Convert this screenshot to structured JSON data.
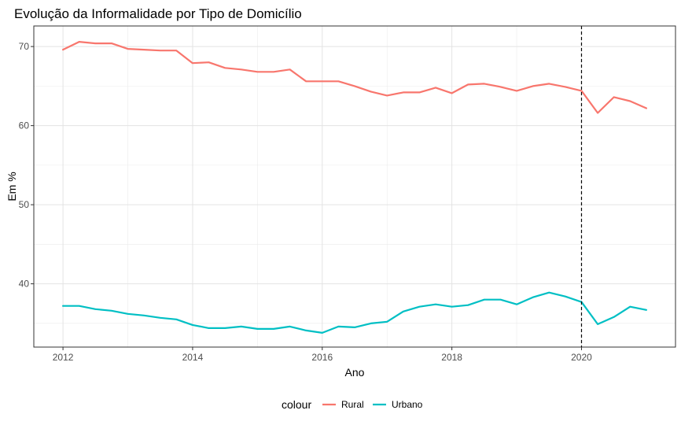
{
  "chart_data": {
    "type": "line",
    "title": "Evolução da Informalidade por Tipo de Domicílio",
    "xlabel": "Ano",
    "ylabel": "Em %",
    "xlim": [
      2011.55,
      2021.45
    ],
    "ylim": [
      32.0,
      72.6
    ],
    "x_ticks": [
      2012,
      2014,
      2016,
      2018,
      2020
    ],
    "y_ticks": [
      40,
      50,
      60,
      70
    ],
    "grid": true,
    "reference_line": {
      "x": 2020,
      "style": "dashed"
    },
    "legend": {
      "title": "colour",
      "position": "bottom"
    },
    "x": [
      2012.0,
      2012.25,
      2012.5,
      2012.75,
      2013.0,
      2013.25,
      2013.5,
      2013.75,
      2014.0,
      2014.25,
      2014.5,
      2014.75,
      2015.0,
      2015.25,
      2015.5,
      2015.75,
      2016.0,
      2016.25,
      2016.5,
      2016.75,
      2017.0,
      2017.25,
      2017.5,
      2017.75,
      2018.0,
      2018.25,
      2018.5,
      2018.75,
      2019.0,
      2019.25,
      2019.5,
      2019.75,
      2020.0,
      2020.25,
      2020.5,
      2020.75,
      2021.0
    ],
    "series": [
      {
        "name": "Rural",
        "color": "#F8766D",
        "values": [
          69.6,
          70.6,
          70.4,
          70.4,
          69.7,
          69.6,
          69.5,
          69.5,
          67.9,
          68.0,
          67.3,
          67.1,
          66.8,
          66.8,
          67.1,
          65.6,
          65.6,
          65.6,
          65.0,
          64.3,
          63.8,
          64.2,
          64.2,
          64.8,
          64.1,
          65.2,
          65.3,
          64.9,
          64.4,
          65.0,
          65.3,
          64.9,
          64.4,
          61.6,
          63.6,
          63.1,
          62.2
        ]
      },
      {
        "name": "Urbano",
        "color": "#00BFC4",
        "values": [
          37.2,
          37.2,
          36.8,
          36.6,
          36.2,
          36.0,
          35.7,
          35.5,
          34.8,
          34.4,
          34.4,
          34.6,
          34.3,
          34.3,
          34.6,
          34.1,
          33.8,
          34.6,
          34.5,
          35.0,
          35.2,
          36.5,
          37.1,
          37.4,
          37.1,
          37.3,
          38.0,
          38.0,
          37.4,
          38.3,
          38.9,
          38.4,
          37.7,
          34.9,
          35.8,
          37.1,
          36.7
        ]
      }
    ]
  }
}
